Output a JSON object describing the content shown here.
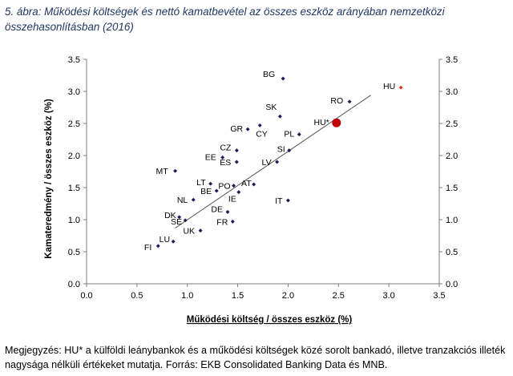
{
  "header": {
    "title": "5. ábra: Működési költségek és nettó kamatbevétel az összes eszköz arányában nemzetközi összehasonlításban (2016)"
  },
  "footnote": {
    "text": "Megjegyzés: HU* a külföldi leánybankok és a működési költségek közé sorolt bankadó, illetve tranzakciós illeték nagysága nélküli értékeket mutatja. Forrás: EKB Consolidated Banking Data és MNB."
  },
  "colors": {
    "marker": "#1f1a5c",
    "hu": "#e2302b",
    "hu_star": "#c00000",
    "trend": "#555555",
    "axis": "#7f7f7f",
    "title": "#1f3864"
  },
  "chart_data": {
    "type": "scatter",
    "title": "",
    "xlabel": "Működési költség / összes eszköz (%)",
    "ylabel": "Kamateredmény / összes eszköz (%)",
    "xlim": [
      0,
      3.5
    ],
    "ylim": [
      0,
      3.5
    ],
    "x_ticks": [
      "0.0",
      "0.5",
      "1.0",
      "1.5",
      "2.0",
      "2.5",
      "3.0",
      "3.5"
    ],
    "y_ticks": [
      "0.0",
      "0.5",
      "1.0",
      "1.5",
      "2.0",
      "2.5",
      "3.0",
      "3.5"
    ],
    "grid": false,
    "trendline": {
      "x": [
        0.88,
        2.82
      ],
      "y": [
        0.87,
        2.94
      ]
    },
    "points": [
      {
        "label": "BG",
        "x": 1.95,
        "y": 3.2
      },
      {
        "label": "HU",
        "x": 3.12,
        "y": 3.06,
        "highlight": "hu"
      },
      {
        "label": "RO",
        "x": 2.61,
        "y": 2.84
      },
      {
        "label": "SK",
        "x": 1.92,
        "y": 2.61
      },
      {
        "label": "HU*",
        "x": 2.48,
        "y": 2.51,
        "highlight": "hu_star"
      },
      {
        "label": "GR",
        "x": 1.6,
        "y": 2.41
      },
      {
        "label": "CY",
        "x": 1.72,
        "y": 2.47
      },
      {
        "label": "PL",
        "x": 2.11,
        "y": 2.33
      },
      {
        "label": "CZ",
        "x": 1.49,
        "y": 2.08
      },
      {
        "label": "SI",
        "x": 2.01,
        "y": 2.08
      },
      {
        "label": "EE",
        "x": 1.35,
        "y": 1.97
      },
      {
        "label": "ES",
        "x": 1.49,
        "y": 1.9
      },
      {
        "label": "LV",
        "x": 1.89,
        "y": 1.9
      },
      {
        "label": "MT",
        "x": 0.88,
        "y": 1.76
      },
      {
        "label": "LT",
        "x": 1.23,
        "y": 1.56
      },
      {
        "label": "PO",
        "x": 1.46,
        "y": 1.53
      },
      {
        "label": "AT",
        "x": 1.66,
        "y": 1.55
      },
      {
        "label": "BE",
        "x": 1.29,
        "y": 1.45
      },
      {
        "label": "IE",
        "x": 1.51,
        "y": 1.43
      },
      {
        "label": "NL",
        "x": 1.06,
        "y": 1.31
      },
      {
        "label": "IT",
        "x": 2.0,
        "y": 1.3
      },
      {
        "label": "DE",
        "x": 1.4,
        "y": 1.12
      },
      {
        "label": "DK",
        "x": 0.92,
        "y": 1.04
      },
      {
        "label": "SE",
        "x": 0.98,
        "y": 0.99
      },
      {
        "label": "FR",
        "x": 1.45,
        "y": 0.97
      },
      {
        "label": "UK",
        "x": 1.13,
        "y": 0.83
      },
      {
        "label": "LU",
        "x": 0.86,
        "y": 0.66
      },
      {
        "label": "FI",
        "x": 0.71,
        "y": 0.59
      }
    ]
  }
}
